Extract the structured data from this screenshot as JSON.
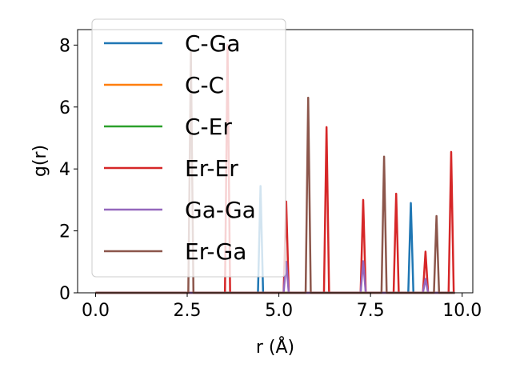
{
  "chart_data": {
    "type": "line",
    "xlabel": "r (Å)",
    "ylabel": "g(r)",
    "xlim": [
      -0.49,
      10.29
    ],
    "ylim": [
      0,
      8.5
    ],
    "xticks": [
      0.0,
      2.5,
      5.0,
      7.5,
      10.0
    ],
    "xtick_labels": [
      "0.0",
      "2.5",
      "5.0",
      "7.5",
      "10.0"
    ],
    "yticks": [
      0,
      2,
      4,
      6,
      8
    ],
    "ytick_labels": [
      "0",
      "2",
      "4",
      "6",
      "8"
    ],
    "grid": false,
    "legend_position": "top-left",
    "series": [
      {
        "name": "C-Ga",
        "color": "#1f77b4",
        "x": [
          0,
          4.43,
          4.5,
          4.57,
          8.53,
          8.6,
          8.67,
          9.8
        ],
        "y": [
          0,
          0,
          3.45,
          0,
          0,
          2.9,
          0,
          0
        ]
      },
      {
        "name": "C-C",
        "color": "#ff7f0e",
        "x": [
          0,
          9.8
        ],
        "y": [
          0,
          0
        ]
      },
      {
        "name": "C-Er",
        "color": "#2ca02c",
        "x": [
          0,
          9.8
        ],
        "y": [
          0,
          0
        ]
      },
      {
        "name": "Er-Er",
        "color": "#d62728",
        "x": [
          0,
          3.53,
          3.6,
          3.67,
          5.13,
          5.2,
          5.27,
          6.23,
          6.3,
          6.37,
          7.23,
          7.3,
          7.37,
          8.13,
          8.2,
          8.27,
          8.93,
          9.0,
          9.07,
          9.63,
          9.7,
          9.77,
          9.8
        ],
        "y": [
          0,
          0,
          8.0,
          0,
          0,
          2.95,
          0,
          0,
          5.35,
          0,
          0,
          3.0,
          0,
          0,
          3.2,
          0,
          0,
          1.33,
          0,
          0,
          4.55,
          0,
          0
        ]
      },
      {
        "name": "Ga-Ga",
        "color": "#9467bd",
        "x": [
          0,
          5.13,
          5.2,
          5.27,
          7.23,
          7.3,
          7.37,
          8.93,
          9.0,
          9.07,
          9.8
        ],
        "y": [
          0,
          0,
          1.0,
          0,
          0,
          1.02,
          0,
          0,
          0.45,
          0,
          0
        ]
      },
      {
        "name": "Er-Ga",
        "color": "#8c564b",
        "x": [
          0,
          2.53,
          2.6,
          2.67,
          5.73,
          5.8,
          5.87,
          7.8,
          7.87,
          7.94,
          9.23,
          9.3,
          9.37,
          9.8
        ],
        "y": [
          0,
          0,
          7.8,
          0,
          0,
          6.3,
          0,
          0,
          4.4,
          0,
          0,
          2.48,
          0,
          0
        ]
      }
    ]
  }
}
